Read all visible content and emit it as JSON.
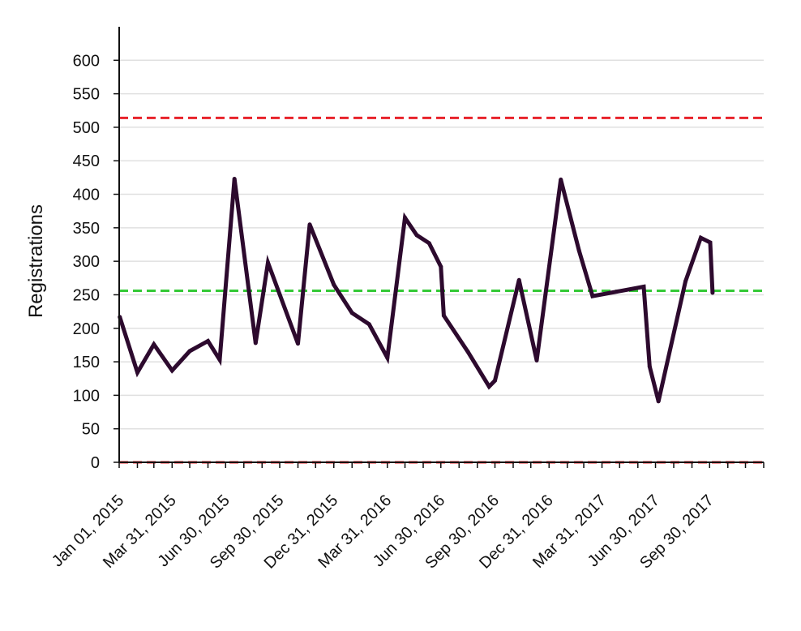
{
  "chart_data": {
    "type": "line",
    "title": "",
    "xlabel": "",
    "ylabel": "Registrations",
    "ylim": [
      0,
      650
    ],
    "yticks": [
      0,
      50,
      100,
      150,
      200,
      250,
      300,
      350,
      400,
      450,
      500,
      550,
      600
    ],
    "xlim": [
      "2014-12-31",
      "2017-12-31"
    ],
    "xtick_labels": [
      {
        "date": "2015-01-01",
        "label": "Jan 01, 2015"
      },
      {
        "date": "2015-03-31",
        "label": "Mar 31, 2015"
      },
      {
        "date": "2015-06-30",
        "label": "Jun 30, 2015"
      },
      {
        "date": "2015-09-30",
        "label": "Sep 30, 2015"
      },
      {
        "date": "2015-12-31",
        "label": "Dec 31, 2015"
      },
      {
        "date": "2016-03-31",
        "label": "Mar 31, 2016"
      },
      {
        "date": "2016-06-30",
        "label": "Jun 30, 2016"
      },
      {
        "date": "2016-09-30",
        "label": "Sep 30, 2016"
      },
      {
        "date": "2016-12-31",
        "label": "Dec 31, 2016"
      },
      {
        "date": "2017-03-31",
        "label": "Mar 31, 2017"
      },
      {
        "date": "2017-06-30",
        "label": "Jun 30, 2017"
      },
      {
        "date": "2017-09-30",
        "label": "Sep 30, 2017"
      }
    ],
    "grid": true,
    "series": [
      {
        "color": "#2d0a2e",
        "points": [
          {
            "x": "2015-01-01",
            "y": 217
          },
          {
            "x": "2015-01-31",
            "y": 134
          },
          {
            "x": "2015-02-28",
            "y": 176
          },
          {
            "x": "2015-03-31",
            "y": 137
          },
          {
            "x": "2015-04-30",
            "y": 166
          },
          {
            "x": "2015-05-31",
            "y": 181
          },
          {
            "x": "2015-06-20",
            "y": 153
          },
          {
            "x": "2015-07-15",
            "y": 423
          },
          {
            "x": "2015-08-20",
            "y": 178
          },
          {
            "x": "2015-09-10",
            "y": 298
          },
          {
            "x": "2015-10-31",
            "y": 177
          },
          {
            "x": "2015-11-20",
            "y": 355
          },
          {
            "x": "2015-12-31",
            "y": 265
          },
          {
            "x": "2016-01-31",
            "y": 223
          },
          {
            "x": "2016-02-29",
            "y": 206
          },
          {
            "x": "2016-03-31",
            "y": 156
          },
          {
            "x": "2016-04-30",
            "y": 365
          },
          {
            "x": "2016-05-20",
            "y": 339
          },
          {
            "x": "2016-06-10",
            "y": 327
          },
          {
            "x": "2016-06-30",
            "y": 292
          },
          {
            "x": "2016-07-05",
            "y": 219
          },
          {
            "x": "2016-08-15",
            "y": 165
          },
          {
            "x": "2016-09-20",
            "y": 113
          },
          {
            "x": "2016-09-30",
            "y": 122
          },
          {
            "x": "2016-11-10",
            "y": 272
          },
          {
            "x": "2016-12-10",
            "y": 152
          },
          {
            "x": "2017-01-20",
            "y": 422
          },
          {
            "x": "2017-02-20",
            "y": 316
          },
          {
            "x": "2017-03-15",
            "y": 248
          },
          {
            "x": "2017-06-10",
            "y": 262
          },
          {
            "x": "2017-06-20",
            "y": 143
          },
          {
            "x": "2017-07-05",
            "y": 91
          },
          {
            "x": "2017-08-20",
            "y": 270
          },
          {
            "x": "2017-09-15",
            "y": 335
          },
          {
            "x": "2017-10-01",
            "y": 328
          },
          {
            "x": "2017-10-05",
            "y": 253
          }
        ]
      }
    ],
    "reference_lines": [
      {
        "y": 514,
        "color": "#e8232b",
        "style": "dashed"
      },
      {
        "y": 256,
        "color": "#35c937",
        "style": "dashed"
      },
      {
        "y": 0,
        "color": "#e8232b",
        "style": "dashed"
      }
    ],
    "colors": {
      "axis": "#111111",
      "grid": "#e0e0e0",
      "text": "#111111"
    }
  }
}
